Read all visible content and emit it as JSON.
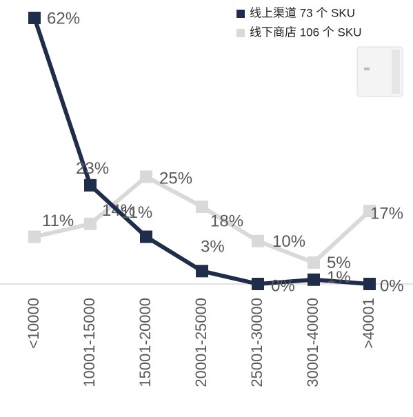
{
  "chart_data": {
    "type": "line",
    "categories": [
      "<10000",
      "10001-15000",
      "15001-20000",
      "20001-25000",
      "25001-30000",
      "30001-40000",
      ">40001"
    ],
    "series": [
      {
        "name": "线上渠道 73 个 SKU",
        "color": "#1f2d4a",
        "values": [
          62,
          23,
          11,
          3,
          0,
          1,
          0
        ],
        "value_labels": [
          "62%",
          "23%",
          "11%",
          "3%",
          "0%",
          "1%",
          "0%"
        ]
      },
      {
        "name": "线下商店 106 个 SKU",
        "color": "#d9d9d9",
        "values": [
          11,
          14,
          25,
          18,
          10,
          5,
          17
        ],
        "value_labels": [
          "11%",
          "14%",
          "25%",
          "18%",
          "10%",
          "5%",
          "17%"
        ]
      }
    ],
    "legend": "top-right"
  }
}
